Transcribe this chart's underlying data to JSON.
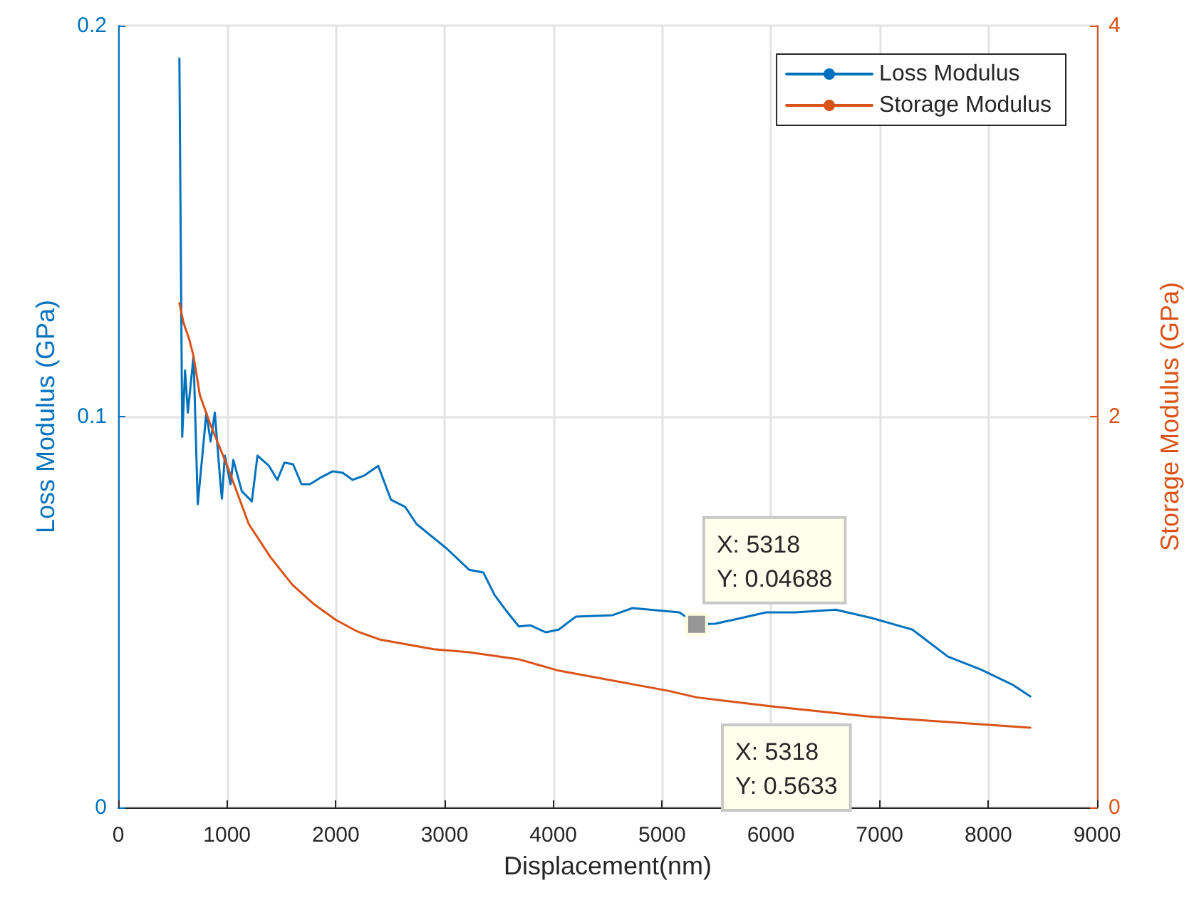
{
  "chart_data": {
    "type": "line",
    "xlabel": "Displacement(nm)",
    "ylabel": "Loss Modulus (GPa)",
    "y2label": "Storage Modulus (GPa)",
    "xlim": [
      0,
      9000
    ],
    "xticks": [
      0,
      1000,
      2000,
      3000,
      4000,
      5000,
      6000,
      7000,
      8000,
      9000
    ],
    "ylim": [
      0,
      0.2
    ],
    "yticks": [
      0,
      0.1,
      0.2
    ],
    "y2lim": [
      0,
      4
    ],
    "y2ticks": [
      0,
      2,
      4
    ],
    "grid": true,
    "legend": "top right",
    "marker": "none",
    "line_style": "solid",
    "annotations": [
      {
        "text": "X: 5318\nY: 0.04688",
        "x": 5318,
        "y": 0.04688
      },
      "X: 5318\nY: 0.5633"
    ],
    "series": [
      {
        "name": "Loss Modulus",
        "color": "#0072bd",
        "x": [
          562,
          588,
          614,
          640,
          692,
          731,
          810,
          849,
          888,
          940,
          953,
          980,
          1032,
          1058,
          1136,
          1228,
          1280,
          1385,
          1463,
          1528,
          1607,
          1685,
          1763,
          1868,
          1972,
          2064,
          2155,
          2260,
          2390,
          2508,
          2638,
          2743,
          3017,
          3226,
          3357,
          3461,
          3579,
          3683,
          3788,
          3932,
          4049,
          4206,
          4545,
          4728,
          5159,
          5318,
          5486,
          5669,
          5957,
          6230,
          6596,
          6923,
          7302,
          7628,
          7929,
          8229,
          8386
        ],
        "values": [
          0.1916,
          0.0948,
          0.1118,
          0.101,
          0.1155,
          0.0776,
          0.101,
          0.0936,
          0.101,
          0.0827,
          0.079,
          0.09,
          0.0827,
          0.0889,
          0.0809,
          0.0783,
          0.09,
          0.0874,
          0.0838,
          0.0882,
          0.0878,
          0.0827,
          0.0827,
          0.0845,
          0.086,
          0.0856,
          0.0838,
          0.0849,
          0.0874,
          0.0787,
          0.0769,
          0.0725,
          0.0663,
          0.0608,
          0.0601,
          0.0543,
          0.0499,
          0.0463,
          0.0466,
          0.0448,
          0.0455,
          0.0488,
          0.0492,
          0.051,
          0.0499,
          0.04688,
          0.047,
          0.0481,
          0.0499,
          0.0499,
          0.0506,
          0.0485,
          0.0455,
          0.0386,
          0.0353,
          0.0313,
          0.0284
        ]
      },
      {
        "name": "Storage Modulus",
        "color": "#d95319",
        "axis": "y2",
        "x": [
          562,
          600,
          650,
          692,
          750,
          840,
          1000,
          1100,
          1200,
          1400,
          1600,
          1800,
          2000,
          2200,
          2400,
          2600,
          2900,
          3226,
          3683,
          4049,
          5055,
          5318,
          6008,
          6883,
          8386
        ],
        "values": [
          2.58,
          2.48,
          2.4,
          2.31,
          2.11,
          1.97,
          1.75,
          1.6,
          1.45,
          1.28,
          1.14,
          1.04,
          0.96,
          0.9,
          0.86,
          0.84,
          0.81,
          0.794,
          0.758,
          0.7,
          0.597,
          0.5633,
          0.517,
          0.466,
          0.408
        ]
      }
    ]
  }
}
